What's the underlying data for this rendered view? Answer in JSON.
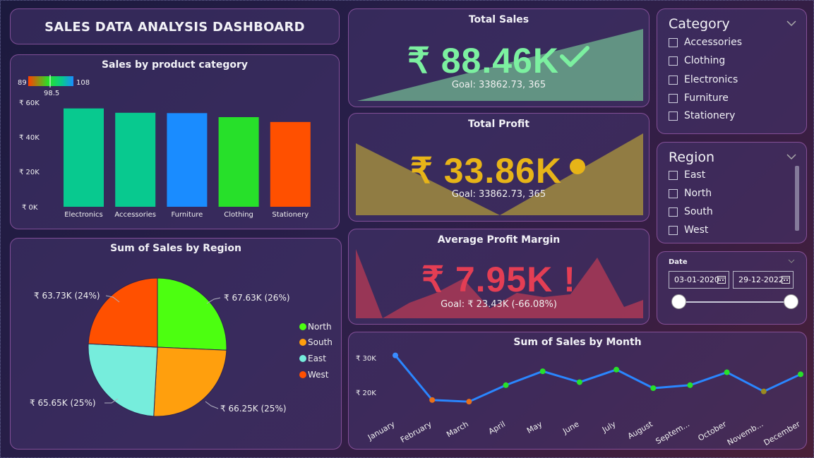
{
  "dashboard": {
    "title": "SALES DATA ANALYSIS DASHBOARD"
  },
  "category_chart": {
    "title": "Sales by product category",
    "legend": {
      "min": "89",
      "mid": "98.5",
      "max": "108"
    },
    "y_ticks": [
      "₹ 60K",
      "₹ 40K",
      "₹ 20K",
      "₹ 0K"
    ]
  },
  "region_chart": {
    "title": "Sum of Sales by Region",
    "labels": [
      "₹ 67.63K (26%)",
      "₹ 66.25K (25%)",
      "₹ 65.65K (25%)",
      "₹ 63.73K (24%)"
    ],
    "legend": [
      "North",
      "South",
      "East",
      "West"
    ]
  },
  "month_chart": {
    "title": "Sum of Sales by Month",
    "y_ticks": [
      "₹ 30K",
      "₹ 20K"
    ],
    "months": [
      "January",
      "February",
      "March",
      "April",
      "May",
      "June",
      "July",
      "August",
      "Septem...",
      "October",
      "Novemb...",
      "December"
    ]
  },
  "kpis": {
    "sales": {
      "title": "Total Sales",
      "value": "₹ 88.46K",
      "goal": "Goal: 33862.73, 365",
      "color": "#7cf0a0",
      "status_icon": "check-icon"
    },
    "profit": {
      "title": "Total Profit",
      "value": "₹ 33.86K",
      "goal": "Goal: 33862.73, 365",
      "color": "#e7b418",
      "status_icon": "dot-icon"
    },
    "margin": {
      "title": "Average Profit Margin",
      "value": "₹ 7.95K",
      "alert": "!",
      "goal": "Goal: ₹ 23.43K (-66.08%)",
      "color": "#e43e54",
      "status_icon": "exclamation-icon"
    }
  },
  "category_slicer": {
    "title": "Category",
    "items": [
      "Accessories",
      "Clothing",
      "Electronics",
      "Furniture",
      "Stationery"
    ]
  },
  "region_slicer": {
    "title": "Region",
    "items": [
      "East",
      "North",
      "South",
      "West"
    ]
  },
  "date_slicer": {
    "label": "Date",
    "start": "03-01-2020",
    "end": "29-12-2022"
  },
  "chart_data": [
    {
      "type": "bar",
      "title": "Sales by product category",
      "categories": [
        "Electronics",
        "Accessories",
        "Furniture",
        "Clothing",
        "Stationery"
      ],
      "values": [
        56500,
        54000,
        53800,
        51500,
        48700
      ],
      "colors": [
        "#08c98f",
        "#08c98f",
        "#1a8cff",
        "#27e02a",
        "#ff5000"
      ],
      "ylim": [
        0,
        60000
      ],
      "color_scale": {
        "min": 89,
        "mid": 98.5,
        "max": 108
      }
    },
    {
      "type": "pie",
      "title": "Sum of Sales by Region",
      "slices": [
        {
          "name": "North",
          "value": 67630,
          "percent": 26,
          "color": "#4cff10"
        },
        {
          "name": "South",
          "value": 66250,
          "percent": 25,
          "color": "#ff9f0d"
        },
        {
          "name": "East",
          "value": 65650,
          "percent": 25,
          "color": "#76eddc"
        },
        {
          "name": "West",
          "value": 63730,
          "percent": 24,
          "color": "#ff5000"
        }
      ],
      "legend": "right"
    },
    {
      "type": "line",
      "title": "Sum of Sales by Month",
      "x": [
        "January",
        "February",
        "March",
        "April",
        "May",
        "June",
        "July",
        "August",
        "September",
        "October",
        "November",
        "December"
      ],
      "values": [
        29300,
        15800,
        15300,
        20300,
        24500,
        21200,
        25000,
        19400,
        20300,
        24200,
        18400,
        23600
      ],
      "point_colors": [
        "#3a8cff",
        "#e8701a",
        "#e8701a",
        "#27e02a",
        "#27e02a",
        "#27e02a",
        "#27e02a",
        "#27e02a",
        "#27e02a",
        "#27e02a",
        "#9a8a20",
        "#27e02a"
      ],
      "line_color": "#2a86ff",
      "ylim": [
        10000,
        32000
      ]
    }
  ]
}
